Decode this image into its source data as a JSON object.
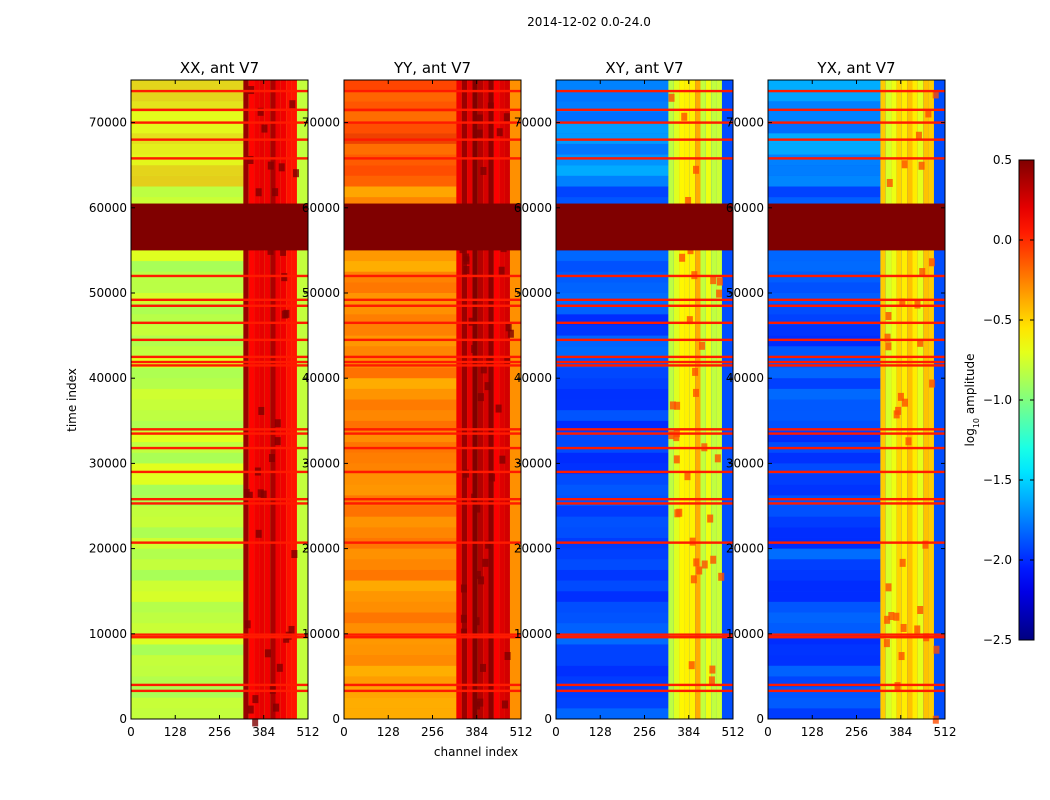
{
  "suptitle": "2014-12-02 0.0-24.0",
  "xlabel": "channel index",
  "ylabel": "time index",
  "colorbar": {
    "label": "log",
    "label_sub": "10",
    "label_suffix": " amplitude",
    "colormap": "jet",
    "range": [
      -2.5,
      0.5
    ],
    "ticks": [
      "0.5",
      "0.0",
      "−0.5",
      "−1.0",
      "−1.5",
      "−2.0",
      "−2.5"
    ],
    "tick_values": [
      0.5,
      0.0,
      -0.5,
      -1.0,
      -1.5,
      -2.0,
      -2.5
    ]
  },
  "chart_data": {
    "type": "heatmap",
    "title": "2014-12-02 0.0-24.0",
    "xlabel": "channel index",
    "ylabel": "time index",
    "xlim": [
      0,
      512
    ],
    "ylim": [
      0,
      75000
    ],
    "x_ticks": [
      "0",
      "128",
      "256",
      "384",
      "512"
    ],
    "y_ticks": [
      "0",
      "10000",
      "20000",
      "30000",
      "40000",
      "50000",
      "60000",
      "70000"
    ],
    "x_tick_values": [
      0,
      128,
      256,
      384,
      512
    ],
    "y_tick_values": [
      0,
      10000,
      20000,
      30000,
      40000,
      50000,
      60000,
      70000
    ],
    "panels": [
      {
        "title": "XX, ant V7",
        "base_level": -0.8,
        "rfi_level": 0.1,
        "rfi_channels": [
          325,
          480
        ],
        "saturated_rows": [
          55000,
          60500
        ]
      },
      {
        "title": "YY, ant V7",
        "base_level": -0.3,
        "rfi_level": 0.2,
        "rfi_channels": [
          325,
          480
        ],
        "saturated_rows": [
          55000,
          60500
        ]
      },
      {
        "title": "XY, ant V7",
        "base_level": -1.9,
        "rfi_level": -0.7,
        "rfi_channels": [
          325,
          480
        ],
        "saturated_rows": [
          55000,
          60500
        ]
      },
      {
        "title": "YX, ant V7",
        "base_level": -1.9,
        "rfi_level": -0.7,
        "rfi_channels": [
          325,
          480
        ],
        "saturated_rows": [
          55000,
          60500
        ]
      }
    ],
    "flagged_rows": [
      3300,
      4000,
      9600,
      9900,
      20700,
      25300,
      25800,
      29000,
      31800,
      33500,
      34000,
      41500,
      41900,
      42500,
      44500,
      46500,
      48500,
      49200,
      52000,
      65800,
      68000,
      70000,
      71500,
      73700
    ]
  }
}
